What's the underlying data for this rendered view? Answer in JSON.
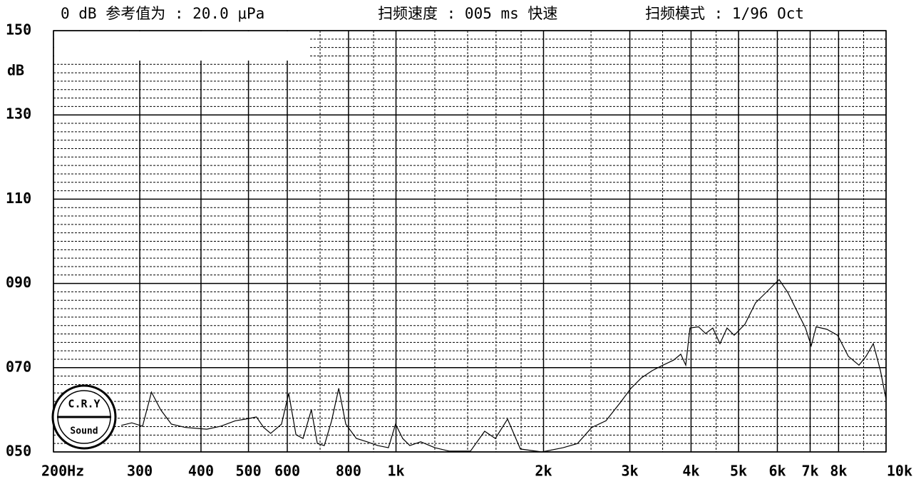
{
  "chart_data": {
    "type": "line",
    "header": [
      "0 dB 参考值为 : 20.0 μPa",
      "扫频速度 : 005 ms 快速",
      "扫频模式 : 1/96  Oct"
    ],
    "ylabel": "dB",
    "logo": [
      "C.R.Y",
      "Sound"
    ],
    "xscale": "log",
    "xlim": [
      200,
      10000
    ],
    "ylim": [
      50,
      150
    ],
    "xticks": [
      {
        "value": 200,
        "label": "200Hz"
      },
      300,
      400,
      500,
      600,
      800,
      {
        "value": 1000,
        "label": "1k"
      },
      {
        "value": 2000,
        "label": "2k"
      },
      {
        "value": 3000,
        "label": "3k"
      },
      {
        "value": 4000,
        "label": "4k"
      },
      {
        "value": 5000,
        "label": "5k"
      },
      {
        "value": 6000,
        "label": "6k"
      },
      {
        "value": 7000,
        "label": "7k"
      },
      {
        "value": 8000,
        "label": "8k"
      },
      {
        "value": 10000,
        "label": "10k"
      }
    ],
    "xminorticks": [
      700,
      900,
      1200,
      1400,
      1600,
      1800,
      2500,
      3500,
      4500,
      9000
    ],
    "yticks": [
      150,
      130,
      110,
      {
        "value": 90,
        "label": "090"
      },
      {
        "value": 70,
        "label": "070"
      },
      {
        "value": 50,
        "label": "050"
      }
    ],
    "yminorticks": [
      52,
      54,
      56,
      58,
      60,
      62,
      64,
      66,
      68,
      72,
      74,
      76,
      78,
      80,
      82,
      84,
      86,
      88,
      92,
      94,
      96,
      98,
      100,
      102,
      104,
      106,
      108,
      112,
      114,
      116,
      118,
      120,
      122,
      124,
      126,
      128,
      132,
      134,
      136,
      138,
      140,
      142,
      144,
      146,
      148
    ],
    "grid": true,
    "color": "#000000",
    "x": [
      275,
      289,
      304,
      317,
      331,
      348,
      372,
      411,
      439,
      470,
      494,
      519,
      537,
      555,
      584,
      604,
      625,
      646,
      672,
      691,
      714,
      739,
      764,
      790,
      830,
      873,
      918,
      965,
      998,
      1032,
      1067,
      1123,
      1200,
      1283,
      1419,
      1517,
      1595,
      1689,
      1794,
      1983,
      2193,
      2346,
      2508,
      2682,
      2868,
      3016,
      3170,
      3334,
      3505,
      3686,
      3811,
      3902,
      3980,
      4143,
      4284,
      4430,
      4582,
      4737,
      4899,
      5152,
      5416,
      5696,
      5890,
      6050,
      6299,
      6622,
      6848,
      7034,
      7201,
      7572,
      7962,
      8373,
      8804,
      9106,
      9417,
      9738,
      10000
    ],
    "values": [
      56.3,
      56.9,
      56.1,
      64.2,
      60.0,
      56.6,
      55.8,
      55.4,
      56.1,
      57.4,
      57.8,
      58.3,
      55.8,
      54.4,
      56.6,
      63.9,
      54.1,
      53.2,
      60.0,
      52.0,
      51.5,
      57.4,
      65.1,
      56.6,
      53.2,
      52.4,
      51.5,
      51.0,
      56.6,
      53.2,
      51.5,
      52.4,
      51.0,
      50.2,
      50.2,
      54.9,
      53.2,
      57.8,
      50.7,
      50.0,
      51.0,
      52.0,
      55.8,
      57.4,
      61.7,
      65.1,
      67.6,
      69.3,
      70.6,
      71.8,
      73.2,
      70.6,
      79.4,
      79.7,
      78.1,
      79.4,
      75.7,
      79.4,
      77.7,
      80.3,
      85.4,
      87.9,
      89.6,
      90.9,
      87.9,
      82.8,
      79.4,
      75.2,
      79.7,
      79.1,
      77.7,
      72.7,
      70.6,
      72.7,
      75.7,
      69.3,
      62.5
    ]
  }
}
